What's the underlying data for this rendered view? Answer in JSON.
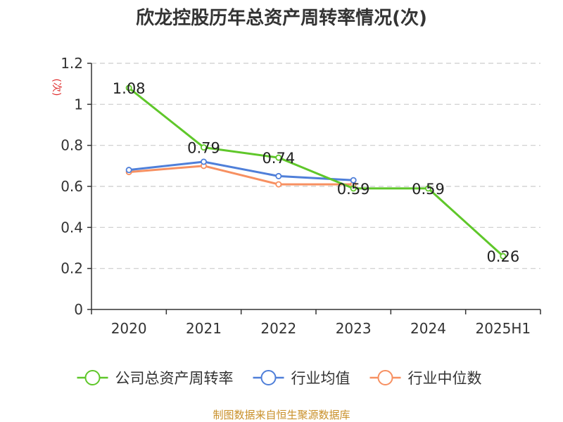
{
  "chart_data": {
    "type": "line",
    "title": "欣龙控股历年总资产周转率情况(次)",
    "ylabel": "(次)",
    "categories": [
      "2020",
      "2021",
      "2022",
      "2023",
      "2024",
      "2025H1"
    ],
    "y_ticks": [
      "0",
      "0.2",
      "0.4",
      "0.6",
      "0.8",
      "1",
      "1.2"
    ],
    "ylim": [
      0,
      1.2
    ],
    "grid": true,
    "legend_position": "bottom",
    "series": [
      {
        "name": "公司总资产周转率",
        "color": "#5fc72a",
        "values": [
          1.08,
          0.79,
          0.74,
          0.59,
          0.59,
          0.26
        ],
        "labels": [
          "1.08",
          "0.79",
          "0.74",
          "0.59",
          "0.59",
          "0.26"
        ]
      },
      {
        "name": "行业均值",
        "color": "#4f7fd9",
        "values": [
          0.68,
          0.72,
          0.65,
          0.63,
          null,
          null
        ]
      },
      {
        "name": "行业中位数",
        "color": "#f79061",
        "values": [
          0.67,
          0.7,
          0.61,
          0.61,
          null,
          null
        ]
      }
    ]
  },
  "colors": {
    "unit": "#e03030",
    "source": "#c9902a",
    "axis": "#333333",
    "grid": "#cccccc"
  },
  "source_text": "制图数据来自恒生聚源数据库"
}
